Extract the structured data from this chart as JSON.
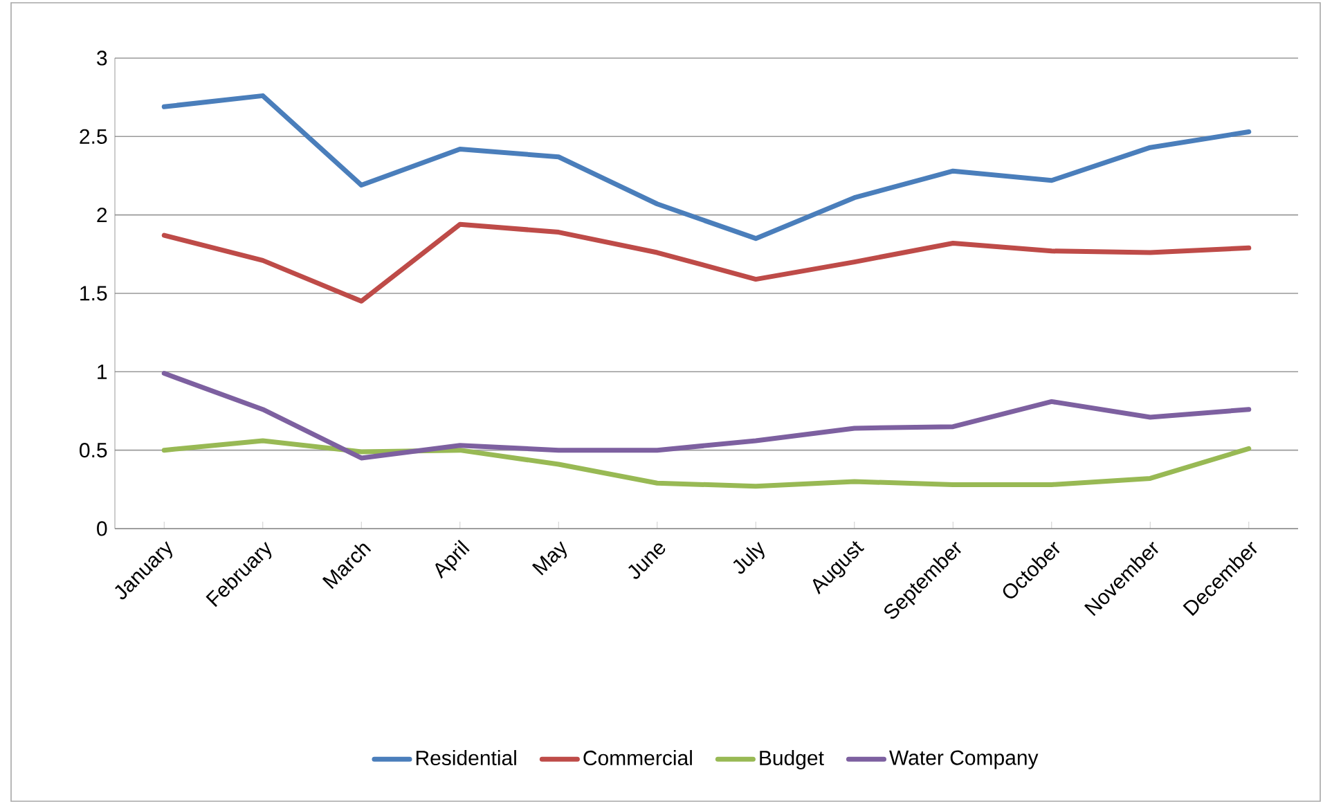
{
  "chart_data": {
    "type": "line",
    "categories": [
      "January",
      "February",
      "March",
      "April",
      "May",
      "June",
      "July",
      "August",
      "September",
      "October",
      "November",
      "December"
    ],
    "series": [
      {
        "name": "Residential",
        "color": "#4a7ebb",
        "values": [
          2.69,
          2.76,
          2.19,
          2.42,
          2.37,
          2.07,
          1.85,
          2.11,
          2.28,
          2.22,
          2.43,
          2.53
        ]
      },
      {
        "name": "Commercial",
        "color": "#be4b48",
        "values": [
          1.87,
          1.71,
          1.45,
          1.94,
          1.89,
          1.76,
          1.59,
          1.7,
          1.82,
          1.77,
          1.76,
          1.79
        ]
      },
      {
        "name": "Budget",
        "color": "#98b954",
        "values": [
          0.5,
          0.56,
          0.49,
          0.5,
          0.41,
          0.29,
          0.27,
          0.3,
          0.28,
          0.28,
          0.32,
          0.51
        ]
      },
      {
        "name": "Water Company",
        "color": "#7d60a0",
        "values": [
          0.99,
          0.76,
          0.45,
          0.53,
          0.5,
          0.5,
          0.56,
          0.64,
          0.65,
          0.81,
          0.71,
          0.76
        ]
      }
    ],
    "ylim": [
      0,
      3
    ],
    "yticks": [
      0,
      0.5,
      1,
      1.5,
      2,
      2.5,
      3
    ],
    "grid": "y",
    "legend": "bottom",
    "marker": "none",
    "line_style": "solid"
  }
}
